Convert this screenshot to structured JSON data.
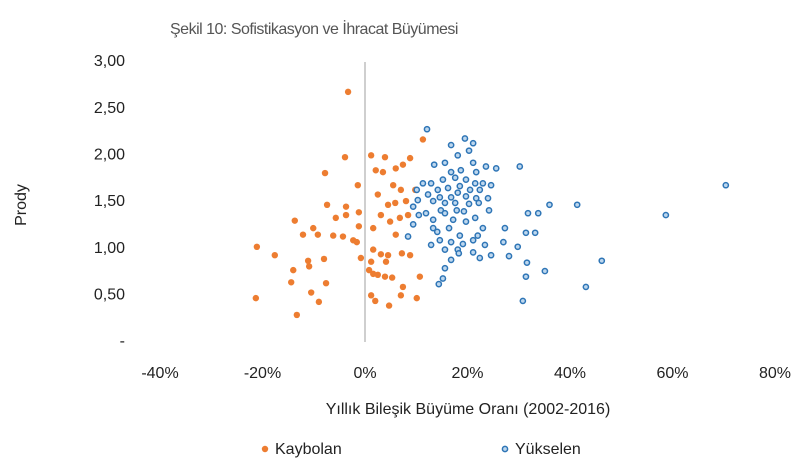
{
  "chart_data": {
    "type": "scatter",
    "title": "Şekil 10: Sofistikasyon ve İhracat Büyümesi",
    "xlabel": "Yıllık Bileşik Büyüme Oranı (2002-2016)",
    "ylabel": "Prody",
    "xlim": [
      -40,
      80
    ],
    "ylim": [
      0,
      3
    ],
    "xticks": [
      {
        "value": -40,
        "label": "-40%"
      },
      {
        "value": -20,
        "label": "-20%"
      },
      {
        "value": 0,
        "label": "0%"
      },
      {
        "value": 20,
        "label": "20%"
      },
      {
        "value": 40,
        "label": "40%"
      },
      {
        "value": 60,
        "label": "60%"
      },
      {
        "value": 80,
        "label": "80%"
      }
    ],
    "yticks": [
      {
        "value": 0,
        "label": "-"
      },
      {
        "value": 0.5,
        "label": "0,50"
      },
      {
        "value": 1,
        "label": "1,00"
      },
      {
        "value": 1.5,
        "label": "1,50"
      },
      {
        "value": 2,
        "label": "2,00"
      },
      {
        "value": 2.5,
        "label": "2,50"
      },
      {
        "value": 3,
        "label": "3,00"
      }
    ],
    "legend": "bottom",
    "series": [
      {
        "name": "Kaybolan",
        "color": "#ed7d31",
        "x": [
          -3.3,
          -3.9,
          1.2,
          3.5,
          6,
          7.4,
          3.9,
          11.3,
          8.8,
          -7.8,
          2.1,
          -1.4,
          5.5,
          2.5,
          7,
          9.8,
          4.5,
          5.9,
          8,
          -3.7,
          -7.4,
          -1.2,
          -3.7,
          3.1,
          6.8,
          8.4,
          -13.7,
          -5.7,
          4.9,
          -1.2,
          1.6,
          -10.1,
          -9.2,
          -4.3,
          -2.3,
          -6.2,
          -12.1,
          6,
          -1.6,
          -21.1,
          1.6,
          3.1,
          4.5,
          7.2,
          8.8,
          -17.6,
          -0.8,
          -8,
          -11.1,
          1.2,
          4.1,
          -10.9,
          -14,
          0.8,
          2.5,
          3.9,
          5.3,
          1.6,
          10.7,
          -14.4,
          7.4,
          -7.6,
          -10.5,
          1.2,
          7,
          4.7,
          2,
          10.1,
          -21.3,
          -9,
          -13.3
        ],
        "y": [
          2.68,
          1.98,
          2,
          1.82,
          1.86,
          1.9,
          1.98,
          2.17,
          1.97,
          1.81,
          1.84,
          1.68,
          1.68,
          1.58,
          1.63,
          1.63,
          1.47,
          1.49,
          1.51,
          1.45,
          1.47,
          1.39,
          1.36,
          1.36,
          1.33,
          1.36,
          1.3,
          1.33,
          1.29,
          1.24,
          1.22,
          1.22,
          1.15,
          1.13,
          1.09,
          1.14,
          1.15,
          1.15,
          1.07,
          1.02,
          0.99,
          0.94,
          0.93,
          0.95,
          0.93,
          0.93,
          0.9,
          0.89,
          0.87,
          0.86,
          0.86,
          0.81,
          0.77,
          0.77,
          0.72,
          0.7,
          0.69,
          0.73,
          0.7,
          0.64,
          0.59,
          0.63,
          0.53,
          0.5,
          0.5,
          0.39,
          0.44,
          0.47,
          0.47,
          0.43,
          0.29
        ]
      },
      {
        "name": "Yükselen",
        "color": "#2e75b6",
        "x": [
          12.1,
          19.5,
          21.1,
          16.8,
          20.3,
          18.1,
          15.6,
          21.1,
          23.6,
          13.5,
          25.6,
          30.2,
          18.7,
          16.8,
          21.7,
          70.4,
          11.3,
          12.9,
          15.2,
          17.6,
          19.7,
          21.5,
          23,
          24.6,
          18.5,
          16.2,
          14.2,
          20.5,
          22.4,
          10.1,
          12.3,
          18.1,
          14.6,
          16.8,
          19.7,
          21.7,
          24,
          10.3,
          13.3,
          15.6,
          17.6,
          20.3,
          22.2,
          36,
          41.4,
          33.8,
          31.8,
          24.2,
          9.4,
          14.8,
          17.9,
          19.3,
          11.9,
          15.6,
          58.7,
          10.5,
          21.5,
          13.3,
          17.2,
          19.7,
          23,
          27.3,
          13.3,
          16.4,
          9.4,
          31.4,
          33.2,
          14.1,
          18.5,
          22,
          8.4,
          14.6,
          21.1,
          27,
          16.8,
          19.1,
          23.4,
          12.9,
          29.8,
          15.6,
          18.1,
          21.1,
          24.6,
          28.1,
          18.3,
          31.6,
          46.2,
          35.1,
          16.8,
          22.4,
          15.6,
          31.4,
          15.2,
          14.4,
          43.1,
          30.8
        ],
        "y": [
          2.28,
          2.18,
          2.13,
          2.11,
          2.05,
          2,
          1.92,
          1.92,
          1.88,
          1.9,
          1.86,
          1.88,
          1.84,
          1.82,
          1.82,
          1.68,
          1.7,
          1.7,
          1.74,
          1.76,
          1.74,
          1.7,
          1.7,
          1.68,
          1.67,
          1.65,
          1.63,
          1.63,
          1.63,
          1.63,
          1.58,
          1.6,
          1.55,
          1.55,
          1.56,
          1.54,
          1.54,
          1.52,
          1.51,
          1.49,
          1.49,
          1.48,
          1.49,
          1.47,
          1.47,
          1.38,
          1.38,
          1.41,
          1.45,
          1.41,
          1.41,
          1.4,
          1.38,
          1.38,
          1.36,
          1.36,
          1.33,
          1.31,
          1.31,
          1.29,
          1.22,
          1.22,
          1.22,
          1.22,
          1.26,
          1.17,
          1.17,
          1.18,
          1.14,
          1.14,
          1.13,
          1.09,
          1.09,
          1.07,
          1.07,
          1.05,
          1.04,
          1.04,
          1.02,
          0.99,
          0.99,
          0.96,
          0.93,
          0.92,
          0.95,
          0.85,
          0.87,
          0.76,
          0.88,
          0.9,
          0.79,
          0.7,
          0.68,
          0.62,
          0.59,
          0.44
        ]
      }
    ]
  }
}
